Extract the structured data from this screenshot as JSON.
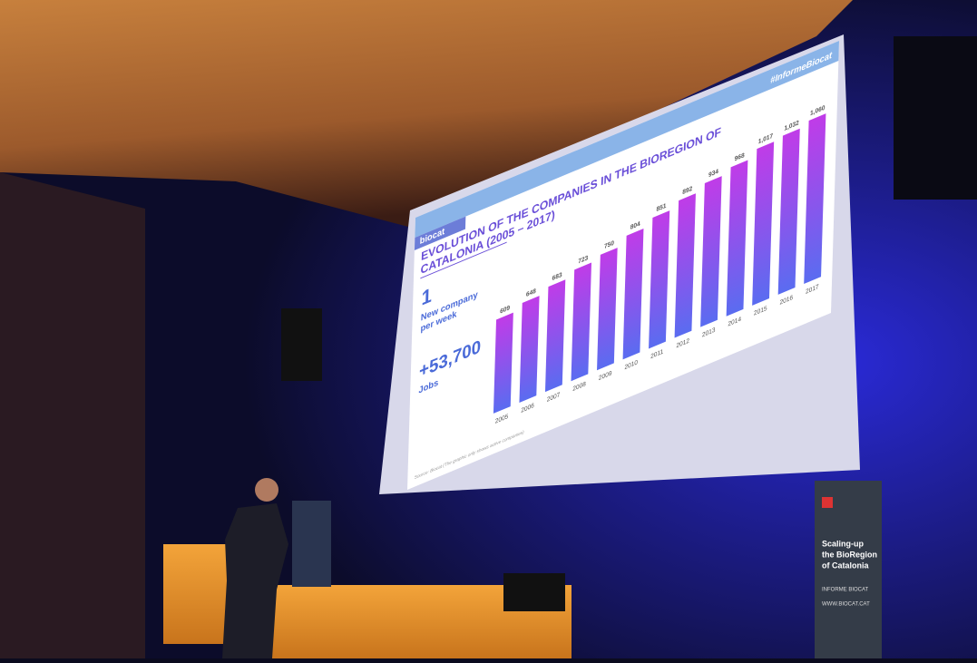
{
  "chart_data": {
    "type": "bar",
    "brand": "biocat",
    "hashtag": "#InformeBiocat",
    "title": [
      "EVOLUTION OF THE COMPANIES IN THE BIOREGION OF",
      "CATALONIA (2005 – 2017)"
    ],
    "highlights": [
      {
        "figure": "1",
        "caption": [
          "New company",
          "per week"
        ]
      },
      {
        "figure": "+53,700",
        "caption": [
          "Jobs"
        ]
      }
    ],
    "categories": [
      "2005",
      "2006",
      "2007",
      "2008",
      "2009",
      "2010",
      "2011",
      "2012",
      "2013",
      "2014",
      "2015",
      "2016",
      "2017"
    ],
    "values": [
      609,
      648,
      683,
      723,
      750,
      804,
      851,
      892,
      934,
      968,
      1017,
      1032,
      1060
    ],
    "value_labels": [
      "609",
      "648",
      "683",
      "723",
      "750",
      "804",
      "851",
      "892",
      "934",
      "968",
      "1,017",
      "1,032",
      "1,060"
    ],
    "color": [
      "#c03ce8",
      "#5a6cf0"
    ],
    "source": "Source: Biocat (The graphic only shows active companies)"
  },
  "banners": [
    {
      "title": [
        "Scaling-up",
        "the BioRegion",
        "of Catalonia"
      ],
      "lines": [
        "INFORME BIOCAT",
        "WWW.BIOCAT.CAT"
      ]
    }
  ]
}
